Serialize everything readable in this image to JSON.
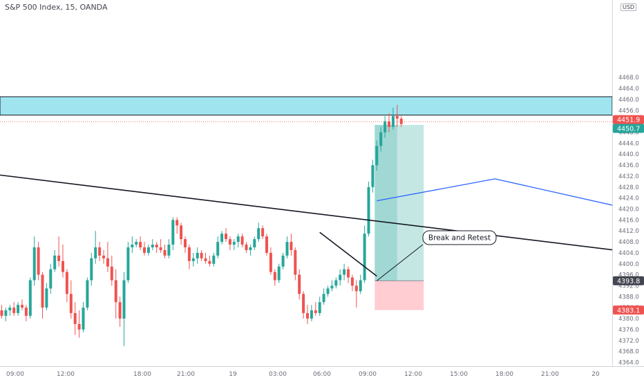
{
  "chart_title": "S&P 500 Index, 15, OANDA",
  "currency": "USD",
  "colors": {
    "up": "#26a69a",
    "down": "#ef5350",
    "resistance_zone": "#9fe4ee",
    "trendline": "#131722",
    "projection": "#2962ff",
    "target_zone": "#b2dfdb",
    "stop_zone": "#ffcdd2"
  },
  "chart_data": {
    "type": "candlestick",
    "title": "S&P 500 Index, 15, OANDA",
    "ylim": [
      4362,
      4468
    ],
    "y_ticks": [
      4364,
      4368,
      4372,
      4376,
      4380,
      4384,
      4388,
      4392,
      4396,
      4400,
      4404,
      4408,
      4412,
      4416,
      4420,
      4424,
      4428,
      4432,
      4436,
      4440,
      4444,
      4448,
      4452,
      4456,
      4460,
      4464,
      4468
    ],
    "x_ticks": [
      "09:00",
      "12:00",
      "18:00",
      "21:00",
      "19",
      "03:00",
      "06:00",
      "09:00",
      "12:00",
      "15:00",
      "18:00",
      "21:00",
      "20"
    ],
    "candles": [
      [
        4383,
        4385,
        4380,
        4381
      ],
      [
        4381,
        4384,
        4379,
        4383
      ],
      [
        4383,
        4385,
        4381,
        4384
      ],
      [
        4384,
        4386,
        4381,
        4382
      ],
      [
        4382,
        4386,
        4381,
        4385
      ],
      [
        4385,
        4387,
        4383,
        4384
      ],
      [
        4384,
        4385,
        4379,
        4381
      ],
      [
        4381,
        4395,
        4380,
        4394
      ],
      [
        4394,
        4410,
        4392,
        4406
      ],
      [
        4406,
        4408,
        4394,
        4396
      ],
      [
        4396,
        4397,
        4380,
        4384
      ],
      [
        4384,
        4393,
        4383,
        4391
      ],
      [
        4391,
        4400,
        4389,
        4398
      ],
      [
        4398,
        4405,
        4397,
        4403
      ],
      [
        4403,
        4410,
        4399,
        4401
      ],
      [
        4401,
        4407,
        4395,
        4397
      ],
      [
        4397,
        4398,
        4386,
        4389
      ],
      [
        4389,
        4394,
        4380,
        4382
      ],
      [
        4382,
        4386,
        4374,
        4378
      ],
      [
        4378,
        4383,
        4373,
        4376
      ],
      [
        4376,
        4386,
        4375,
        4384
      ],
      [
        4384,
        4395,
        4383,
        4394
      ],
      [
        4394,
        4404,
        4392,
        4402
      ],
      [
        4402,
        4412,
        4400,
        4406
      ],
      [
        4406,
        4408,
        4401,
        4403
      ],
      [
        4403,
        4405,
        4400,
        4402
      ],
      [
        4402,
        4408,
        4397,
        4399
      ],
      [
        4399,
        4403,
        4392,
        4394
      ],
      [
        4394,
        4398,
        4380,
        4386
      ],
      [
        4386,
        4388,
        4377,
        4380
      ],
      [
        4380,
        4397,
        4370,
        4394
      ],
      [
        4394,
        4408,
        4393,
        4406
      ],
      [
        4406,
        4410,
        4404,
        4407
      ],
      [
        4407,
        4409,
        4406,
        4408
      ],
      [
        4408,
        4410,
        4405,
        4406
      ],
      [
        4406,
        4408,
        4403,
        4404
      ],
      [
        4404,
        4407,
        4403,
        4406
      ],
      [
        4406,
        4409,
        4405,
        4407
      ],
      [
        4407,
        4408,
        4404,
        4406
      ],
      [
        4406,
        4409,
        4404,
        4405
      ],
      [
        4405,
        4407,
        4402,
        4403
      ],
      [
        4403,
        4409,
        4402,
        4407
      ],
      [
        4407,
        4417,
        4405,
        4416
      ],
      [
        4416,
        4417,
        4411,
        4414
      ],
      [
        4414,
        4415,
        4407,
        4409
      ],
      [
        4409,
        4410,
        4404,
        4406
      ],
      [
        4406,
        4407,
        4398,
        4401
      ],
      [
        4401,
        4404,
        4399,
        4402
      ],
      [
        4402,
        4406,
        4400,
        4404
      ],
      [
        4404,
        4405,
        4401,
        4402
      ],
      [
        4402,
        4404,
        4400,
        4401
      ],
      [
        4401,
        4403,
        4399,
        4400
      ],
      [
        4400,
        4404,
        4399,
        4403
      ],
      [
        4403,
        4410,
        4402,
        4408
      ],
      [
        4408,
        4412,
        4407,
        4411
      ],
      [
        4411,
        4413,
        4408,
        4409
      ],
      [
        4409,
        4410,
        4405,
        4407
      ],
      [
        4407,
        4409,
        4405,
        4408
      ],
      [
        4408,
        4411,
        4406,
        4410
      ],
      [
        4410,
        4411,
        4406,
        4407
      ],
      [
        4407,
        4408,
        4404,
        4405
      ],
      [
        4405,
        4407,
        4403,
        4406
      ],
      [
        4406,
        4410,
        4405,
        4409
      ],
      [
        4409,
        4415,
        4408,
        4413
      ],
      [
        4413,
        4414,
        4409,
        4410
      ],
      [
        4410,
        4411,
        4403,
        4404
      ],
      [
        4404,
        4406,
        4396,
        4397
      ],
      [
        4397,
        4398,
        4392,
        4394
      ],
      [
        4394,
        4400,
        4393,
        4399
      ],
      [
        4399,
        4404,
        4398,
        4403
      ],
      [
        4403,
        4410,
        4402,
        4408
      ],
      [
        4408,
        4411,
        4403,
        4405
      ],
      [
        4405,
        4406,
        4394,
        4396
      ],
      [
        4396,
        4398,
        4387,
        4389
      ],
      [
        4389,
        4390,
        4380,
        4382
      ],
      [
        4382,
        4385,
        4378,
        4380
      ],
      [
        4380,
        4385,
        4379,
        4383
      ],
      [
        4383,
        4386,
        4381,
        4382
      ],
      [
        4382,
        4388,
        4381,
        4386
      ],
      [
        4386,
        4391,
        4385,
        4389
      ],
      [
        4389,
        4392,
        4388,
        4391
      ],
      [
        4391,
        4394,
        4390,
        4392
      ],
      [
        4392,
        4395,
        4391,
        4394
      ],
      [
        4394,
        4398,
        4392,
        4396
      ],
      [
        4396,
        4400,
        4394,
        4398
      ],
      [
        4398,
        4399,
        4393,
        4395
      ],
      [
        4395,
        4396,
        4390,
        4392
      ],
      [
        4392,
        4394,
        4384,
        4390
      ],
      [
        4390,
        4396,
        4389,
        4394
      ],
      [
        4394,
        4414,
        4393,
        4411
      ],
      [
        4411,
        4430,
        4410,
        4428
      ],
      [
        4428,
        4438,
        4426,
        4436
      ],
      [
        4436,
        4445,
        4434,
        4443
      ],
      [
        4443,
        4450,
        4441,
        4448
      ],
      [
        4448,
        4454,
        4446,
        4452
      ],
      [
        4452,
        4455,
        4448,
        4450
      ],
      [
        4450,
        4457,
        4449,
        4454
      ],
      [
        4454,
        4458,
        4450,
        4453
      ],
      [
        4453,
        4454,
        4450,
        4451
      ]
    ],
    "annotations": {
      "resistance_zone": [
        4454.3,
        4461.0
      ],
      "descending_trendline": [
        [
          -34,
          4438.5
        ],
        [
          153,
          4404.5
        ]
      ],
      "short_trendline": [
        [
          78,
          4411.5
        ],
        [
          92,
          4395.5
        ]
      ],
      "projection_line": [
        [
          92,
          4423
        ],
        [
          121,
          4431
        ],
        [
          151,
          4421
        ]
      ],
      "position_long": {
        "entry": 4393.8,
        "target": 4450.7,
        "stop": 4383.1,
        "x_start": 92,
        "x_end": 103
      },
      "label": "Break and Retest"
    },
    "price_tags": [
      {
        "value": 4451.9,
        "text": "4451.9",
        "color": "#ef5350"
      },
      {
        "value": 4450.7,
        "text": "4450.7",
        "color": "#26a69a"
      },
      {
        "value": 4393.8,
        "text": "4393.8",
        "color": "#434651"
      },
      {
        "value": 4383.1,
        "text": "4383.1",
        "color": "#ef5350"
      }
    ]
  }
}
